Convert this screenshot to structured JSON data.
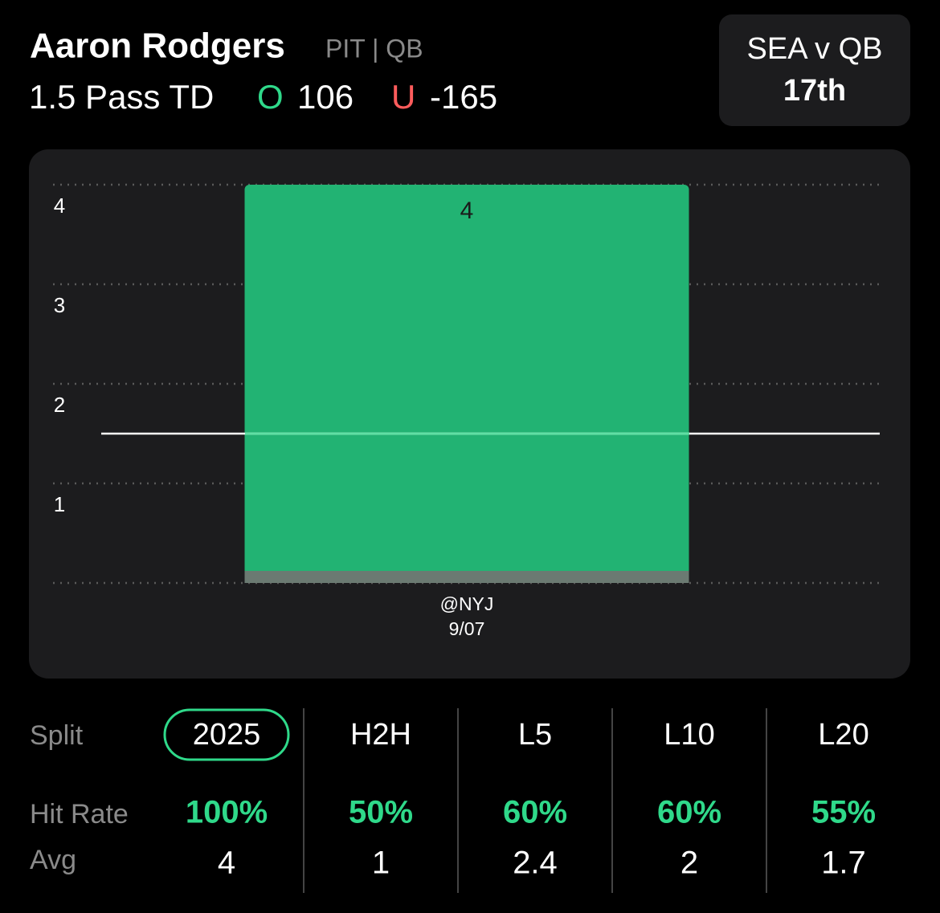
{
  "header": {
    "player": "Aaron Rodgers",
    "team_position": "PIT | QB",
    "prop": "1.5 Pass TD",
    "over_label": "O",
    "over_odds": "106",
    "under_label": "U",
    "under_odds": "-165"
  },
  "matchup": {
    "label": "SEA v QB",
    "rank": "17th"
  },
  "chart_data": {
    "type": "bar",
    "categories": [
      "@NYJ"
    ],
    "category_dates": [
      "9/07"
    ],
    "values": [
      4
    ],
    "color": "#22b373",
    "ylim": [
      0,
      4
    ],
    "yticks": [
      1,
      2,
      3,
      4
    ],
    "grid": true,
    "line_value": 1.5
  },
  "splits": {
    "label": "Split",
    "columns": [
      "2025",
      "H2H",
      "L5",
      "L10",
      "L20"
    ],
    "selected": 0,
    "hit_rate_label": "Hit Rate",
    "hit_rates": [
      "100%",
      "50%",
      "60%",
      "60%",
      "55%"
    ],
    "avg_label": "Avg",
    "avgs": [
      4,
      1,
      2.4,
      2,
      1.7
    ]
  }
}
